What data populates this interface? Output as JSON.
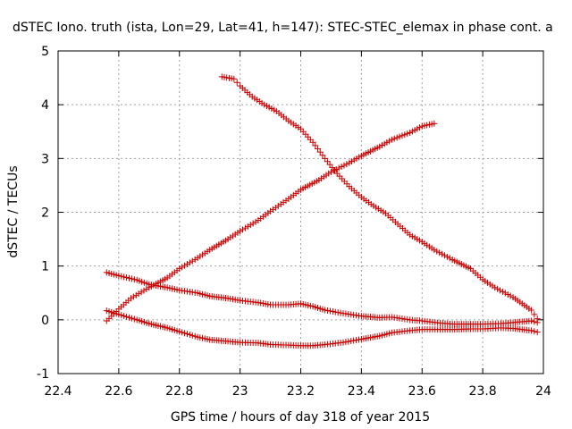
{
  "chart_data": {
    "type": "scatter",
    "title": "dSTEC Iono. truth (ista, Lon=29, Lat=41, h=147): STEC-STEC_elemax in phase cont. a",
    "xlabel": "GPS time / hours of day 318 of year 2015",
    "ylabel": "dSTEC  / TECUs",
    "xlim": [
      22.4,
      24
    ],
    "ylim": [
      -1,
      5
    ],
    "xticks": [
      22.4,
      22.6,
      22.8,
      23,
      23.2,
      23.4,
      23.6,
      23.8,
      24
    ],
    "xtick_labels": [
      "22.4",
      "22.6",
      "22.8",
      "23",
      "23.2",
      "23.4",
      "23.6",
      "23.8",
      "24"
    ],
    "yticks": [
      -1,
      0,
      1,
      2,
      3,
      4,
      5
    ],
    "ytick_labels": [
      "-1",
      "0",
      "1",
      "2",
      "3",
      "4",
      "5"
    ],
    "grid": true,
    "marker": "+",
    "color": "#cc0000",
    "series": [
      {
        "x": [
          22.56,
          22.6,
          22.64,
          22.7,
          22.76,
          22.8,
          22.86,
          22.9,
          22.96,
          23.0,
          23.06,
          23.1,
          23.16,
          23.2,
          23.26,
          23.3,
          23.36,
          23.4,
          23.46,
          23.5,
          23.56,
          23.6,
          23.64
        ],
        "y": [
          -0.02,
          0.2,
          0.4,
          0.6,
          0.78,
          0.95,
          1.15,
          1.3,
          1.5,
          1.65,
          1.85,
          2.02,
          2.25,
          2.42,
          2.6,
          2.75,
          2.92,
          3.05,
          3.22,
          3.35,
          3.48,
          3.6,
          3.65
        ]
      },
      {
        "x": [
          22.94,
          22.98,
          23.0,
          23.04,
          23.08,
          23.12,
          23.16,
          23.2,
          23.24,
          23.28,
          23.32,
          23.36,
          23.4,
          23.44,
          23.48,
          23.52,
          23.56,
          23.6,
          23.64,
          23.7,
          23.76,
          23.8,
          23.84,
          23.9,
          23.96,
          23.98
        ],
        "y": [
          4.52,
          4.48,
          4.35,
          4.15,
          4.0,
          3.88,
          3.7,
          3.55,
          3.3,
          3.0,
          2.72,
          2.48,
          2.28,
          2.12,
          1.98,
          1.78,
          1.58,
          1.45,
          1.3,
          1.12,
          0.95,
          0.75,
          0.6,
          0.42,
          0.18,
          0.02
        ]
      },
      {
        "x": [
          22.56,
          22.6,
          22.66,
          22.7,
          22.76,
          22.8,
          22.86,
          22.9,
          22.96,
          23.0,
          23.06,
          23.1,
          23.16,
          23.2,
          23.24,
          23.28,
          23.34,
          23.4,
          23.46,
          23.5,
          23.56,
          23.6,
          23.66,
          23.7,
          23.76,
          23.8,
          23.86,
          23.9,
          23.96,
          23.98
        ],
        "y": [
          0.88,
          0.82,
          0.74,
          0.66,
          0.6,
          0.55,
          0.5,
          0.44,
          0.4,
          0.36,
          0.32,
          0.28,
          0.28,
          0.3,
          0.25,
          0.18,
          0.12,
          0.07,
          0.04,
          0.05,
          0.0,
          -0.02,
          -0.06,
          -0.08,
          -0.08,
          -0.08,
          -0.07,
          -0.05,
          -0.02,
          -0.05
        ]
      },
      {
        "x": [
          22.56,
          22.6,
          22.66,
          22.7,
          22.76,
          22.8,
          22.86,
          22.9,
          22.96,
          23.0,
          23.06,
          23.1,
          23.16,
          23.2,
          23.24,
          23.28,
          23.34,
          23.4,
          23.46,
          23.5,
          23.56,
          23.6,
          23.66,
          23.7,
          23.76,
          23.8,
          23.86,
          23.9,
          23.96,
          23.98
        ],
        "y": [
          0.17,
          0.1,
          0.0,
          -0.07,
          -0.15,
          -0.22,
          -0.32,
          -0.37,
          -0.4,
          -0.42,
          -0.43,
          -0.46,
          -0.47,
          -0.48,
          -0.48,
          -0.46,
          -0.42,
          -0.36,
          -0.3,
          -0.24,
          -0.2,
          -0.18,
          -0.18,
          -0.18,
          -0.17,
          -0.17,
          -0.15,
          -0.16,
          -0.2,
          -0.23
        ]
      }
    ]
  }
}
